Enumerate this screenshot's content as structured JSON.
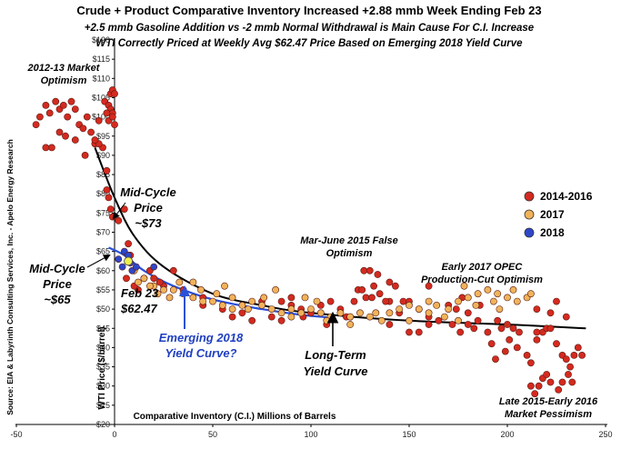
{
  "chart_data": {
    "type": "scatter",
    "title": "Crude + Product Comparative Inventory Increased +2.88 mmb Week Ending Feb 23",
    "subtitle_lines": [
      "+2.5 mmb Gasoline Addition vs -2 mmb Normal Withdrawal is Main Cause For C.I. Increase",
      "WTI Correctly Priced at Weekly Avg $62.47 Price Based on Emerging 2018 Yield Curve"
    ],
    "xlabel": "Comparative Inventory (C.I.) Millions of Barrels",
    "ylabel": "WTI Price ($/barrel)",
    "source": "Source: EIA & Labyrinth Consulting Services, Inc. - Apelo Energy Research",
    "xlim": [
      -50,
      250
    ],
    "ylim": [
      20,
      120
    ],
    "x_ticks": [
      "-50",
      "0",
      "50",
      "100",
      "150",
      "200",
      "250"
    ],
    "y_ticks": [
      "$20",
      "$25",
      "$30",
      "$35",
      "$40",
      "$45",
      "$50",
      "$55",
      "$60",
      "$65",
      "$70",
      "$75",
      "$80",
      "$85",
      "$90",
      "$95",
      "$100",
      "$105",
      "$110",
      "$115",
      "$120"
    ],
    "colors": {
      "s2014": "#d42a20",
      "s2017": "#f0b35a",
      "s2018": "#2e47c9",
      "highlight": "#eef04a",
      "blue_curve": "#2a50d8",
      "black_curve": "#000000"
    },
    "series": [
      {
        "name": "2014-2016",
        "points": [
          [
            -40,
            98
          ],
          [
            -38,
            100
          ],
          [
            -35,
            103
          ],
          [
            -33,
            101
          ],
          [
            -30,
            104
          ],
          [
            -28,
            102
          ],
          [
            -26,
            103
          ],
          [
            -24,
            100
          ],
          [
            -22,
            104
          ],
          [
            -20,
            102
          ],
          [
            -18,
            98
          ],
          [
            -16,
            97
          ],
          [
            -14,
            100
          ],
          [
            -12,
            96
          ],
          [
            -10,
            93
          ],
          [
            -8,
            99
          ],
          [
            -5,
            104
          ],
          [
            -3,
            103
          ],
          [
            -2,
            102
          ],
          [
            -1,
            101
          ],
          [
            -4,
            101
          ],
          [
            -2,
            106
          ],
          [
            -1,
            107
          ],
          [
            0,
            106
          ],
          [
            -3,
            99
          ],
          [
            -1,
            100
          ],
          [
            0,
            98
          ],
          [
            -6,
            92
          ],
          [
            -8,
            93
          ],
          [
            -10,
            94
          ],
          [
            -15,
            90
          ],
          [
            -20,
            94
          ],
          [
            -25,
            95
          ],
          [
            -28,
            96
          ],
          [
            -32,
            92
          ],
          [
            -35,
            92
          ],
          [
            -4,
            86
          ],
          [
            -4,
            81
          ],
          [
            -3,
            79
          ],
          [
            -2,
            76
          ],
          [
            -1,
            74
          ],
          [
            2,
            73
          ],
          [
            5,
            76
          ],
          [
            7,
            67
          ],
          [
            8,
            64
          ],
          [
            6,
            58
          ],
          [
            12,
            55
          ],
          [
            18,
            60
          ],
          [
            20,
            58
          ],
          [
            25,
            56
          ],
          [
            35,
            55
          ],
          [
            45,
            53
          ],
          [
            55,
            50
          ],
          [
            65,
            49
          ],
          [
            75,
            52
          ],
          [
            85,
            52
          ],
          [
            95,
            50
          ],
          [
            105,
            51
          ],
          [
            110,
            52
          ],
          [
            115,
            50
          ],
          [
            118,
            48
          ],
          [
            108,
            46
          ],
          [
            120,
            48
          ],
          [
            122,
            52
          ],
          [
            124,
            55
          ],
          [
            126,
            55
          ],
          [
            128,
            53
          ],
          [
            131,
            53
          ],
          [
            135,
            54
          ],
          [
            127,
            60
          ],
          [
            130,
            60
          ],
          [
            134,
            59
          ],
          [
            140,
            57
          ],
          [
            143,
            56
          ],
          [
            147,
            52
          ],
          [
            150,
            52
          ],
          [
            155,
            50
          ],
          [
            160,
            48
          ],
          [
            140,
            46
          ],
          [
            150,
            44
          ],
          [
            165,
            47
          ],
          [
            172,
            46
          ],
          [
            176,
            44
          ],
          [
            180,
            46
          ],
          [
            183,
            45
          ],
          [
            190,
            44
          ],
          [
            192,
            41
          ],
          [
            185,
            47
          ],
          [
            195,
            47
          ],
          [
            197,
            45
          ],
          [
            200,
            46
          ],
          [
            203,
            45
          ],
          [
            206,
            44
          ],
          [
            194,
            37
          ],
          [
            199,
            39
          ],
          [
            201,
            42
          ],
          [
            205,
            40
          ],
          [
            210,
            38
          ],
          [
            212,
            36
          ],
          [
            215,
            42
          ],
          [
            218,
            44
          ],
          [
            220,
            45
          ],
          [
            222,
            45
          ],
          [
            225,
            41
          ],
          [
            228,
            38
          ],
          [
            230,
            37
          ],
          [
            232,
            35
          ],
          [
            234,
            38
          ],
          [
            236,
            40
          ],
          [
            238,
            38
          ],
          [
            212,
            30
          ],
          [
            214,
            28
          ],
          [
            216,
            30
          ],
          [
            218,
            32
          ],
          [
            220,
            33
          ],
          [
            222,
            31
          ],
          [
            226,
            29
          ],
          [
            228,
            31
          ],
          [
            231,
            33
          ],
          [
            233,
            31
          ],
          [
            215,
            44
          ],
          [
            222,
            49
          ],
          [
            225,
            52
          ],
          [
            215,
            50
          ],
          [
            230,
            48
          ],
          [
            177,
            53
          ],
          [
            160,
            56
          ],
          [
            180,
            49
          ],
          [
            186,
            51
          ],
          [
            100,
            49
          ],
          [
            90,
            51
          ],
          [
            80,
            48
          ],
          [
            70,
            47
          ],
          [
            60,
            48
          ],
          [
            30,
            60
          ],
          [
            15,
            58
          ],
          [
            23,
            57
          ],
          [
            45,
            51
          ],
          [
            140,
            52
          ],
          [
            145,
            49
          ],
          [
            170,
            51
          ],
          [
            174,
            50
          ],
          [
            160,
            46
          ],
          [
            155,
            44
          ],
          [
            90,
            53
          ],
          [
            85,
            47
          ],
          [
            96,
            48
          ],
          [
            132,
            56
          ],
          [
            138,
            52
          ],
          [
            10,
            56
          ]
        ]
      },
      {
        "name": "2017",
        "points": [
          [
            10,
            60
          ],
          [
            15,
            58
          ],
          [
            20,
            56
          ],
          [
            25,
            55
          ],
          [
            30,
            55
          ],
          [
            35,
            54
          ],
          [
            40,
            53
          ],
          [
            45,
            52
          ],
          [
            50,
            52
          ],
          [
            55,
            51
          ],
          [
            60,
            50
          ],
          [
            65,
            51
          ],
          [
            70,
            52
          ],
          [
            75,
            51
          ],
          [
            80,
            50
          ],
          [
            85,
            49
          ],
          [
            90,
            50
          ],
          [
            95,
            49
          ],
          [
            100,
            50
          ],
          [
            105,
            49
          ],
          [
            110,
            48
          ],
          [
            115,
            49
          ],
          [
            120,
            48
          ],
          [
            125,
            49
          ],
          [
            130,
            48
          ],
          [
            140,
            49
          ],
          [
            145,
            50
          ],
          [
            150,
            51
          ],
          [
            155,
            50
          ],
          [
            160,
            52
          ],
          [
            170,
            50
          ],
          [
            175,
            52
          ],
          [
            180,
            53
          ],
          [
            185,
            54
          ],
          [
            190,
            55
          ],
          [
            195,
            54
          ],
          [
            200,
            53
          ],
          [
            205,
            52
          ],
          [
            210,
            53
          ],
          [
            212,
            54
          ],
          [
            168,
            48
          ],
          [
            178,
            56
          ],
          [
            184,
            51
          ],
          [
            193,
            52
          ],
          [
            203,
            55
          ],
          [
            196,
            50
          ],
          [
            175,
            47
          ],
          [
            160,
            49
          ],
          [
            164,
            51
          ],
          [
            150,
            47
          ],
          [
            133,
            49
          ],
          [
            120,
            46
          ],
          [
            108,
            47
          ],
          [
            103,
            52
          ],
          [
            97,
            53
          ],
          [
            90,
            48
          ],
          [
            82,
            55
          ],
          [
            76,
            53
          ],
          [
            68,
            50
          ],
          [
            60,
            53
          ],
          [
            56,
            56
          ],
          [
            52,
            54
          ],
          [
            44,
            55
          ],
          [
            40,
            57
          ],
          [
            33,
            57
          ],
          [
            28,
            53
          ],
          [
            22,
            54
          ],
          [
            18,
            56
          ],
          [
            12,
            57
          ],
          [
            136,
            47
          ]
        ]
      },
      {
        "name": "2018",
        "points": [
          [
            2,
            63
          ],
          [
            5,
            65
          ],
          [
            7,
            64
          ],
          [
            8,
            62
          ],
          [
            9,
            60
          ],
          [
            11,
            61
          ],
          [
            4,
            61
          ],
          [
            20,
            61
          ]
        ]
      }
    ],
    "highlight_point": {
      "x": 7,
      "y": 62.47,
      "label": "Feb 23"
    },
    "curves": [
      {
        "name": "Long-Term Yield Curve",
        "points": [
          [
            -10,
            92
          ],
          [
            0,
            79
          ],
          [
            10,
            69
          ],
          [
            25,
            61
          ],
          [
            50,
            54
          ],
          [
            75,
            51
          ],
          [
            100,
            49
          ],
          [
            150,
            47
          ],
          [
            200,
            46
          ],
          [
            240,
            45
          ]
        ]
      },
      {
        "name": "Emerging 2018 Yield Curve",
        "points": [
          [
            -3,
            66
          ],
          [
            5,
            64
          ],
          [
            15,
            60
          ],
          [
            30,
            56
          ],
          [
            50,
            52.5
          ],
          [
            75,
            50
          ],
          [
            95,
            48.5
          ],
          [
            110,
            47.8
          ]
        ]
      }
    ],
    "legend": {
      "placement": "right",
      "entries": [
        "2014-2016",
        "2017",
        "2018"
      ]
    },
    "annotations": {
      "market_2012": [
        "2012-13 Market",
        "Optimism"
      ],
      "mid_cycle_73": [
        "Mid-Cycle",
        "Price",
        "~$73"
      ],
      "mid_cycle_65": [
        "Mid-Cycle",
        "Price",
        "~$65"
      ],
      "feb23": [
        "Feb 23",
        "$62.47"
      ],
      "emerging": [
        "Emerging 2018",
        "Yield Curve?"
      ],
      "long_term": [
        "Long-Term",
        "Yield Curve"
      ],
      "mar_june": [
        "Mar-June 2015 False",
        "Optimism"
      ],
      "opec": [
        "Early 2017 OPEC",
        "Production-Cut Optimism"
      ],
      "late2015": [
        "Late 2015-Early 2016",
        "Market Pessimism"
      ]
    }
  }
}
